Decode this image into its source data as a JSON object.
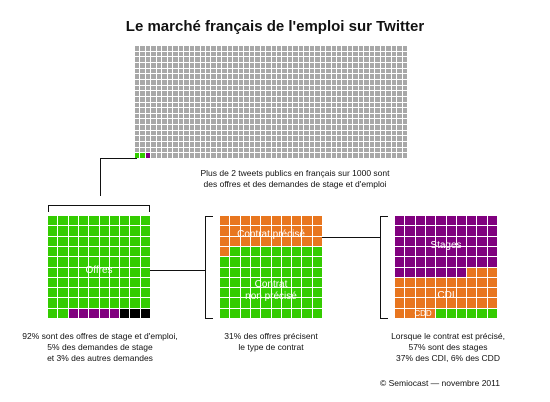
{
  "title": "Le marché français de l'emploi sur Twitter",
  "top": {
    "caption": [
      "Plus de 2 tweets publics en français sur 1000 sont",
      "des offres et des demandes de stage et d'emploi"
    ]
  },
  "offers": {
    "label": "Offres",
    "caption": [
      "92% sont des offres de stage et d'emploi,",
      "5% des demandes de stage",
      "et 3% des autres demandes"
    ]
  },
  "contract": {
    "label_top": "Contrat précisé",
    "label_bottom": [
      "Contrat",
      "non précisé"
    ],
    "caption": [
      "31% des offres précisent",
      "le type de contrat"
    ]
  },
  "types": {
    "label_stages": "Stages",
    "label_cdi": "CDI",
    "label_cdd": "CDD",
    "caption": [
      "Lorsque le contrat est précisé,",
      "57% sont des stages",
      "37% des CDI, 6% des CDD"
    ]
  },
  "footer": "© Semiocast — novembre 2011",
  "colors": {
    "gray": "#a8a8a8",
    "green": "#33cc00",
    "purple": "#80007f",
    "orange": "#e8761f",
    "black": "#000000"
  },
  "chart_data": [
    {
      "type": "waffle",
      "cells": 1000,
      "highlight": [
        {
          "name": "offres",
          "count": 2,
          "color": "green"
        },
        {
          "name": "demandes",
          "count": 1,
          "color": "purple"
        }
      ]
    },
    {
      "type": "waffle",
      "cells": 100,
      "segments": [
        {
          "name": "Offres",
          "value": 92,
          "color": "green"
        },
        {
          "name": "demandes de stage",
          "value": 5,
          "color": "purple"
        },
        {
          "name": "autres demandes",
          "value": 3,
          "color": "black"
        }
      ]
    },
    {
      "type": "waffle",
      "cells": 100,
      "segments": [
        {
          "name": "Contrat précisé",
          "value": 31,
          "color": "orange"
        },
        {
          "name": "Contrat non précisé",
          "value": 69,
          "color": "green"
        }
      ]
    },
    {
      "type": "waffle",
      "cells": 100,
      "segments": [
        {
          "name": "Stages",
          "value": 57,
          "color": "purple"
        },
        {
          "name": "CDI",
          "value": 37,
          "color": "orange"
        },
        {
          "name": "CDD",
          "value": 6,
          "color": "green"
        }
      ]
    }
  ]
}
